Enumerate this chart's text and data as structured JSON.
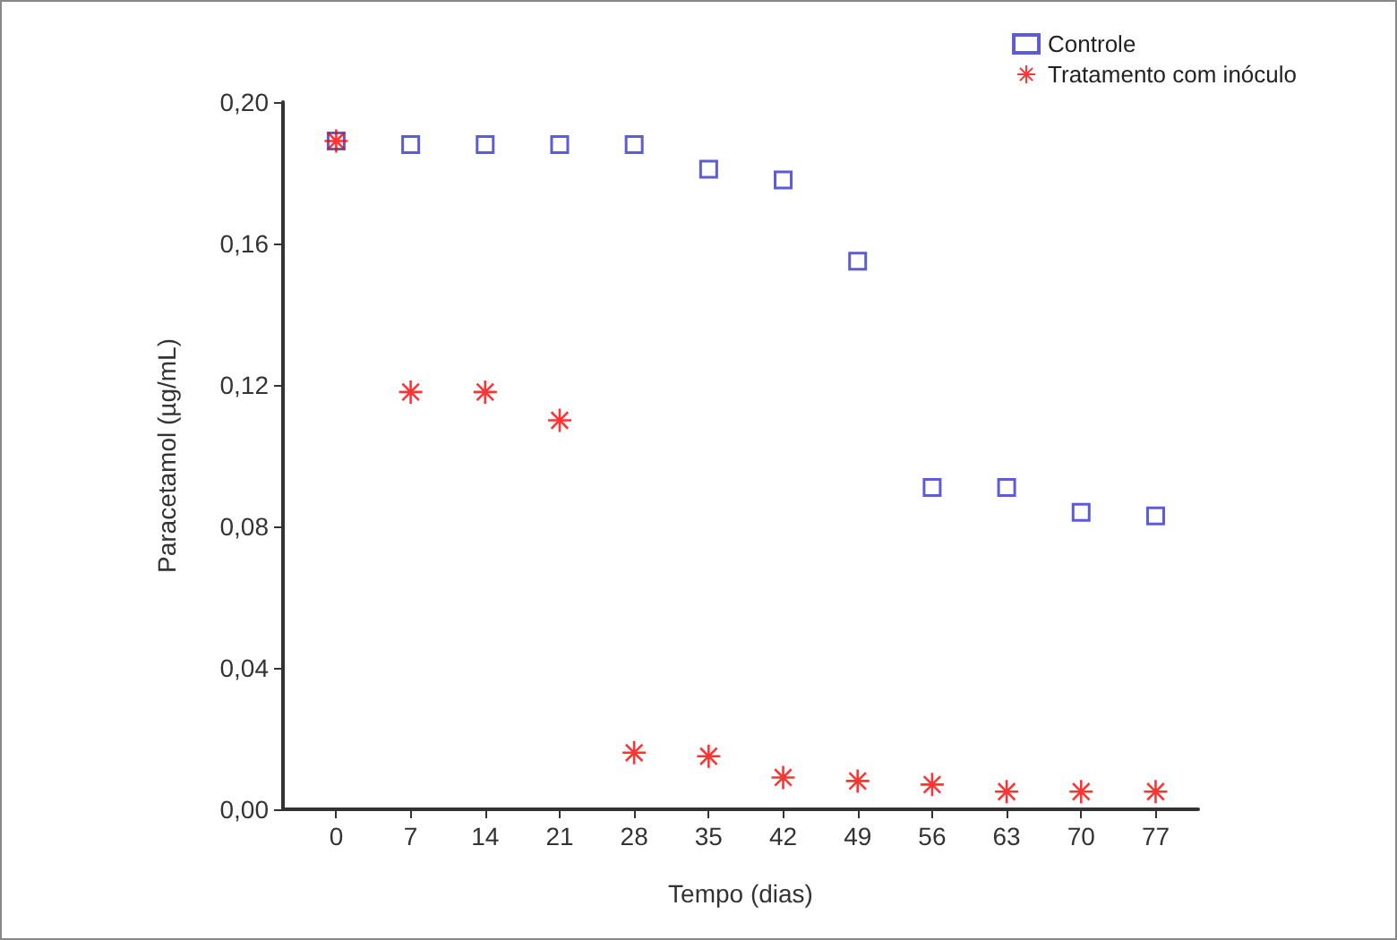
{
  "chart_data": {
    "type": "scatter",
    "xlabel": "Tempo (dias)",
    "ylabel": "Paracetamol (µg/mL)",
    "x": [
      0,
      7,
      14,
      21,
      28,
      35,
      42,
      49,
      56,
      63,
      70,
      77
    ],
    "series": [
      {
        "name": "Controle",
        "color": "#3333cc",
        "marker": "square",
        "values": [
          0.189,
          0.188,
          0.188,
          0.188,
          0.188,
          0.181,
          0.178,
          0.155,
          0.091,
          0.091,
          0.084,
          0.083
        ]
      },
      {
        "name": "Tratamento com inóculo",
        "color": "#ff0000",
        "marker": "star",
        "values": [
          0.189,
          0.118,
          0.118,
          0.11,
          0.016,
          0.015,
          0.009,
          0.008,
          0.007,
          0.005,
          0.005,
          0.005
        ]
      }
    ],
    "xlim": [
      -5,
      81
    ],
    "xticks": [
      0,
      7,
      14,
      21,
      28,
      35,
      42,
      49,
      56,
      63,
      70,
      77
    ],
    "ylim": [
      0,
      0.2
    ],
    "yticks": [
      {
        "value": 0,
        "label": "0,00"
      },
      {
        "value": 0.04,
        "label": "0,04"
      },
      {
        "value": 0.08,
        "label": "0,08"
      },
      {
        "value": 0.12,
        "label": "0,12"
      },
      {
        "value": 0.16,
        "label": "0,16"
      },
      {
        "value": 0.2,
        "label": "0,20"
      }
    ],
    "grid": false,
    "legend": "top right"
  }
}
